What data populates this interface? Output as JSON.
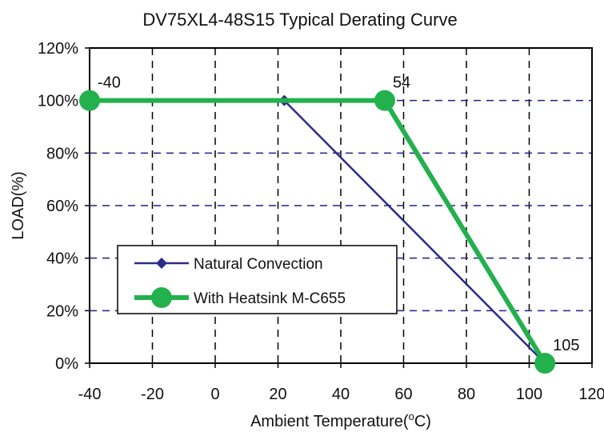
{
  "chart_data": {
    "type": "line",
    "title": "DV75XL4-48S15 Typical Derating Curve",
    "xlabel_prefix": "Ambient Temperature(",
    "xlabel_sup": "o",
    "xlabel_suffix": "C)",
    "ylabel": "LOAD(%)",
    "xlim": [
      -40,
      120
    ],
    "ylim": [
      0,
      120
    ],
    "x_ticks": [
      -40,
      -20,
      0,
      20,
      40,
      60,
      80,
      100,
      120
    ],
    "x_tick_labels": [
      "-40",
      "-20",
      "0",
      "20",
      "40",
      "60",
      "80",
      "100",
      "120"
    ],
    "y_ticks": [
      0,
      20,
      40,
      60,
      80,
      100,
      120
    ],
    "y_tick_labels": [
      "0%",
      "20%",
      "40%",
      "60%",
      "80%",
      "100%",
      "120%"
    ],
    "grid": true,
    "grid_style": "dashed",
    "legend_position": "lower-left",
    "series": [
      {
        "name": "Natural Convection",
        "color": "#2b2b8c",
        "marker": "diamond",
        "x": [
          22,
          105
        ],
        "y": [
          100,
          0
        ]
      },
      {
        "name": "With Heatsink M-C655",
        "color": "#22b14c",
        "marker": "circle",
        "x": [
          -40,
          54,
          105
        ],
        "y": [
          100,
          100,
          0
        ]
      }
    ],
    "annotations": [
      {
        "text": "-40",
        "x": -40,
        "y": 100
      },
      {
        "text": "54",
        "x": 54,
        "y": 100
      },
      {
        "text": "105",
        "x": 105,
        "y": 0
      }
    ]
  }
}
